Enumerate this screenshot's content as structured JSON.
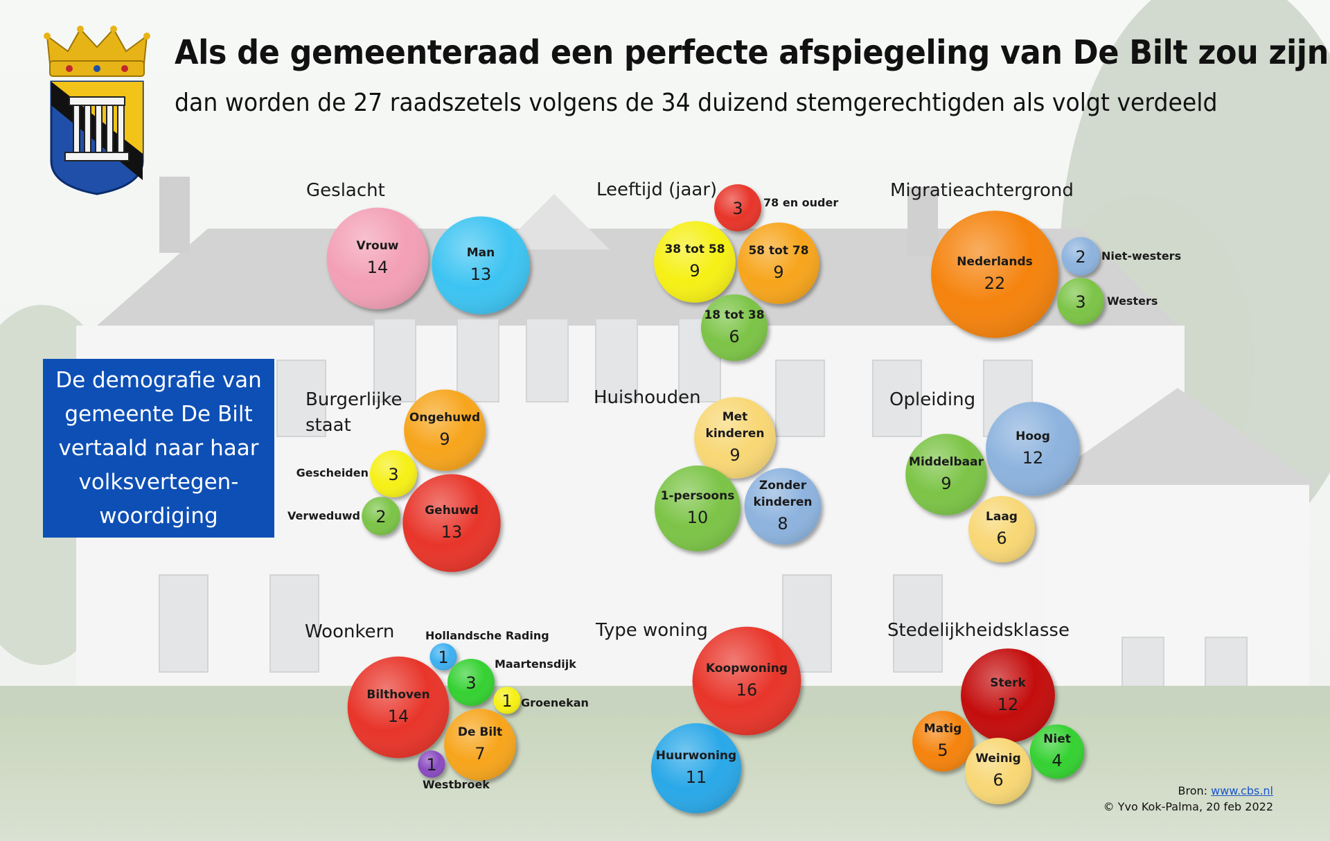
{
  "header": {
    "title": "Als de gemeenteraad een perfecte afspiegeling van De Bilt zou zijn",
    "subtitle": "dan worden de 27 raadszetels volgens de 34 duizend stemgerechtigden als volgt verdeeld"
  },
  "infobox": {
    "text": "De demografie van\ngemeente De Bilt\nvertaald naar haar\nvolksvertegen-\nwoordiging"
  },
  "source": {
    "label": "Bron: ",
    "link": "www.cbs.nl",
    "credit": "© Yvo Kok-Palma, 20 feb 2022"
  },
  "chart_data": [
    {
      "type": "bubble",
      "title": "Geslacht",
      "series": [
        {
          "name": "Vrouw",
          "value": 14,
          "color": "#f3a0b6"
        },
        {
          "name": "Man",
          "value": 13,
          "color": "#3cc4f2"
        }
      ]
    },
    {
      "type": "bubble",
      "title": "Leeftijd (jaar)",
      "series": [
        {
          "name": "78 en ouder",
          "value": 3,
          "color": "#e8342a"
        },
        {
          "name": "38 tot 58",
          "value": 9,
          "color": "#f6f014"
        },
        {
          "name": "58 tot 78",
          "value": 9,
          "color": "#f7a51c"
        },
        {
          "name": "18 tot 38",
          "value": 6,
          "color": "#7bc446"
        }
      ]
    },
    {
      "type": "bubble",
      "title": "Migratieachtergrond",
      "series": [
        {
          "name": "Nederlands",
          "value": 22,
          "color": "#f5830f"
        },
        {
          "name": "Niet-westers",
          "value": 2,
          "color": "#8db3de"
        },
        {
          "name": "Westers",
          "value": 3,
          "color": "#7bc446"
        }
      ]
    },
    {
      "type": "bubble",
      "title": "Burgerlijke\nstaat",
      "series": [
        {
          "name": "Ongehuwd",
          "value": 9,
          "color": "#f7a51c"
        },
        {
          "name": "Gescheiden",
          "value": 3,
          "color": "#f6f014"
        },
        {
          "name": "Verweduwd",
          "value": 2,
          "color": "#7bc446"
        },
        {
          "name": "Gehuwd",
          "value": 13,
          "color": "#e8342a"
        }
      ]
    },
    {
      "type": "bubble",
      "title": "Huishouden",
      "series": [
        {
          "name": "Met\nkinderen",
          "value": 9,
          "color": "#f8d774"
        },
        {
          "name": "1-persoons",
          "value": 10,
          "color": "#7bc446"
        },
        {
          "name": "Zonder\nkinderen",
          "value": 8,
          "color": "#8db3de"
        }
      ]
    },
    {
      "type": "bubble",
      "title": "Opleiding",
      "series": [
        {
          "name": "Hoog",
          "value": 12,
          "color": "#8db3de"
        },
        {
          "name": "Middelbaar",
          "value": 9,
          "color": "#7bc446"
        },
        {
          "name": "Laag",
          "value": 6,
          "color": "#f8d774"
        }
      ]
    },
    {
      "type": "bubble",
      "title": "Woonkern",
      "series": [
        {
          "name": "Hollandsche Rading",
          "value": 1,
          "color": "#3cb0f0"
        },
        {
          "name": "Maartensdijk",
          "value": 3,
          "color": "#35d132"
        },
        {
          "name": "Groenekan",
          "value": 1,
          "color": "#f6f014"
        },
        {
          "name": "Bilthoven",
          "value": 14,
          "color": "#e8342a"
        },
        {
          "name": "De Bilt",
          "value": 7,
          "color": "#f7a51c"
        },
        {
          "name": "Westbroek",
          "value": 1,
          "color": "#8a4bc1"
        }
      ]
    },
    {
      "type": "bubble",
      "title": "Type woning",
      "series": [
        {
          "name": "Koopwoning",
          "value": 16,
          "color": "#e8342a"
        },
        {
          "name": "Huurwoning",
          "value": 11,
          "color": "#2aa8e8"
        }
      ]
    },
    {
      "type": "bubble",
      "title": "Stedelijkheidsklasse",
      "series": [
        {
          "name": "Sterk",
          "value": 12,
          "color": "#c40d0d"
        },
        {
          "name": "Matig",
          "value": 5,
          "color": "#f5830f"
        },
        {
          "name": "Weinig",
          "value": 6,
          "color": "#f8d774"
        },
        {
          "name": "Niet",
          "value": 4,
          "color": "#35d132"
        }
      ]
    }
  ]
}
